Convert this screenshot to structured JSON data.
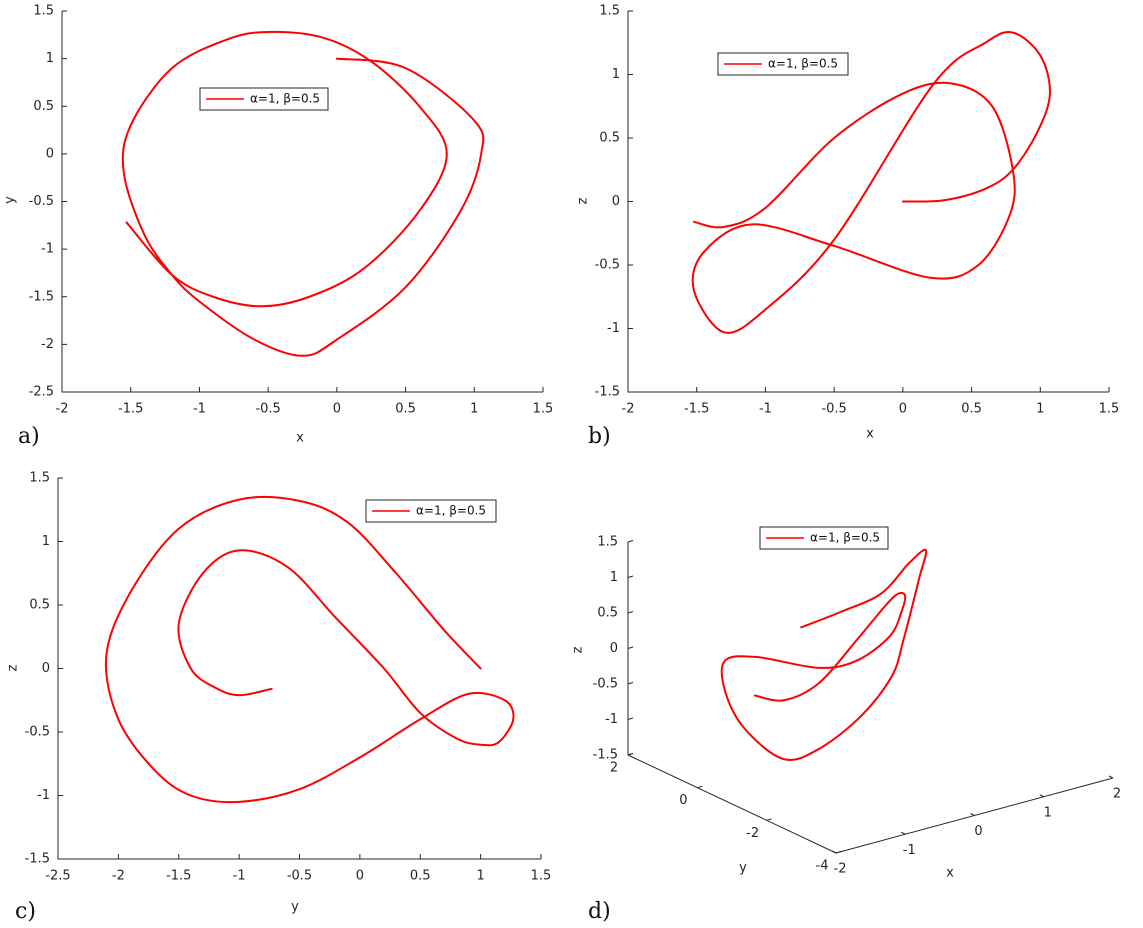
{
  "chart_data": [
    {
      "type": "line",
      "label": "a)",
      "xlabel": "x",
      "ylabel": "y",
      "xlim": [
        -2,
        1.5
      ],
      "ylim": [
        -2.5,
        1.5
      ],
      "xticks": [
        -2,
        -1.5,
        -1,
        -0.5,
        0,
        0.5,
        1,
        1.5
      ],
      "yticks": [
        -2.5,
        -2,
        -1.5,
        -1,
        -0.5,
        0,
        0.5,
        1,
        1.5
      ],
      "series": [
        {
          "name": "α=1, β=0.5",
          "color": "#ff0000",
          "x": [
            0,
            0.5,
            1.0,
            1.05,
            0.9,
            0.5,
            0,
            -0.25,
            -0.6,
            -1.0,
            -1.2,
            -1.4,
            -1.55,
            -1.5,
            -1.2,
            -0.8,
            -0.5,
            -0.1,
            0.25,
            0.6,
            0.8,
            0.6,
            0.2,
            -0.2,
            -0.55,
            -0.9,
            -1.2,
            -1.53
          ],
          "values": [
            1,
            0.9,
            0.35,
            0,
            -0.6,
            -1.4,
            -1.95,
            -2.12,
            -1.95,
            -1.55,
            -1.27,
            -0.85,
            -0.2,
            0.3,
            0.9,
            1.2,
            1.28,
            1.22,
            0.97,
            0.5,
            0,
            -0.6,
            -1.2,
            -1.5,
            -1.6,
            -1.5,
            -1.27,
            -0.72
          ]
        }
      ]
    },
    {
      "type": "line",
      "label": "b)",
      "xlabel": "x",
      "ylabel": "z",
      "xlim": [
        -2,
        1.5
      ],
      "ylim": [
        -1.5,
        1.5
      ],
      "xticks": [
        -2,
        -1.5,
        -1,
        -0.5,
        0,
        0.5,
        1,
        1.5
      ],
      "yticks": [
        -1.5,
        -1,
        -0.5,
        0,
        0.5,
        1,
        1.5
      ],
      "series": [
        {
          "name": "α=1, β=0.5",
          "color": "#ff0000",
          "x": [
            0,
            0.3,
            0.6,
            0.8,
            0.98,
            1.07,
            1.0,
            0.8,
            0.6,
            0.22,
            -0.5,
            -1.0,
            -1.3,
            -1.52,
            -1.45,
            -1.1,
            -0.5,
            0.2,
            0.55,
            0.78,
            0.8,
            0.65,
            0.35,
            0,
            -0.5,
            -1.0,
            -1.3,
            -1.52
          ],
          "values": [
            0,
            0.01,
            0.1,
            0.25,
            0.55,
            0.85,
            1.15,
            1.33,
            1.25,
            0.92,
            -0.3,
            -0.85,
            -1.03,
            -0.7,
            -0.4,
            -0.18,
            -0.35,
            -0.6,
            -0.5,
            -0.1,
            0.25,
            0.75,
            0.93,
            0.85,
            0.5,
            -0.05,
            -0.2,
            -0.16
          ]
        }
      ]
    },
    {
      "type": "line",
      "label": "c)",
      "xlabel": "y",
      "ylabel": "z",
      "xlim": [
        -2.5,
        1.5
      ],
      "ylim": [
        -1.5,
        1.5
      ],
      "xticks": [
        -2.5,
        -2,
        -1.5,
        -1,
        -0.5,
        0,
        0.5,
        1,
        1.5
      ],
      "yticks": [
        -1.5,
        -1,
        -0.5,
        0,
        0.5,
        1,
        1.5
      ],
      "series": [
        {
          "name": "α=1, β=0.5",
          "color": "#ff0000",
          "x": [
            1,
            0.7,
            0.3,
            -0.1,
            -0.5,
            -1.0,
            -1.5,
            -1.9,
            -2.1,
            -2.0,
            -1.7,
            -1.4,
            -1.0,
            -0.5,
            0,
            0.5,
            0.9,
            1.2,
            1.27,
            1.15,
            1.0,
            0.8,
            0.5,
            0.2,
            -0.2,
            -0.6,
            -1.0,
            -1.3,
            -1.5,
            -1.4,
            -1.2,
            -1.0,
            -0.73
          ],
          "values": [
            0,
            0.3,
            0.75,
            1.15,
            1.32,
            1.33,
            1.1,
            0.6,
            0.1,
            -0.4,
            -0.8,
            -1.0,
            -1.05,
            -0.95,
            -0.7,
            -0.4,
            -0.2,
            -0.25,
            -0.4,
            -0.58,
            -0.6,
            -0.55,
            -0.35,
            0,
            0.4,
            0.8,
            0.93,
            0.75,
            0.35,
            0,
            -0.15,
            -0.21,
            -0.16
          ]
        }
      ]
    },
    {
      "type": "line3d",
      "label": "d)",
      "xlabel": "x",
      "ylabel": "y",
      "zlabel": "z",
      "xlim": [
        -2,
        2
      ],
      "ylim": [
        -4,
        2
      ],
      "zlim": [
        -1.5,
        1.5
      ],
      "xticks": [
        -2,
        -1,
        0,
        1,
        2
      ],
      "yticks": [
        -4,
        -2,
        0,
        2
      ],
      "zticks": [
        -1.5,
        -1,
        -0.5,
        0,
        0.5,
        1,
        1.5
      ],
      "series": [
        {
          "name": "α=1, β=0.5",
          "color": "#ff0000",
          "x": [
            0,
            0.5,
            0.9,
            1.05,
            0.85,
            0.5,
            0,
            -0.25,
            -0.6,
            -1.0,
            -1.3,
            -1.52,
            -1.45,
            -1.1,
            -0.5,
            0.2,
            0.55,
            0.78,
            0.75,
            0.6,
            0.3,
            0,
            -0.5,
            -1.0,
            -1.3,
            -1.53
          ],
          "y": [
            1,
            0.9,
            0.5,
            0,
            -0.9,
            -1.4,
            -1.95,
            -2.12,
            -1.95,
            -1.55,
            -1.1,
            -0.4,
            0.3,
            1.0,
            1.28,
            0.9,
            0.5,
            0,
            -0.4,
            -0.8,
            -1.2,
            -1.45,
            -1.6,
            -1.5,
            -1.1,
            -0.72
          ],
          "values": [
            0,
            0.1,
            0.35,
            0.85,
            1.3,
            1.1,
            0.5,
            0.1,
            -0.4,
            -0.85,
            -1.03,
            -0.7,
            -0.35,
            -0.18,
            -0.35,
            -0.6,
            -0.5,
            -0.1,
            0.35,
            0.7,
            0.9,
            0.88,
            0.55,
            0.05,
            -0.2,
            -0.16
          ]
        }
      ]
    }
  ]
}
